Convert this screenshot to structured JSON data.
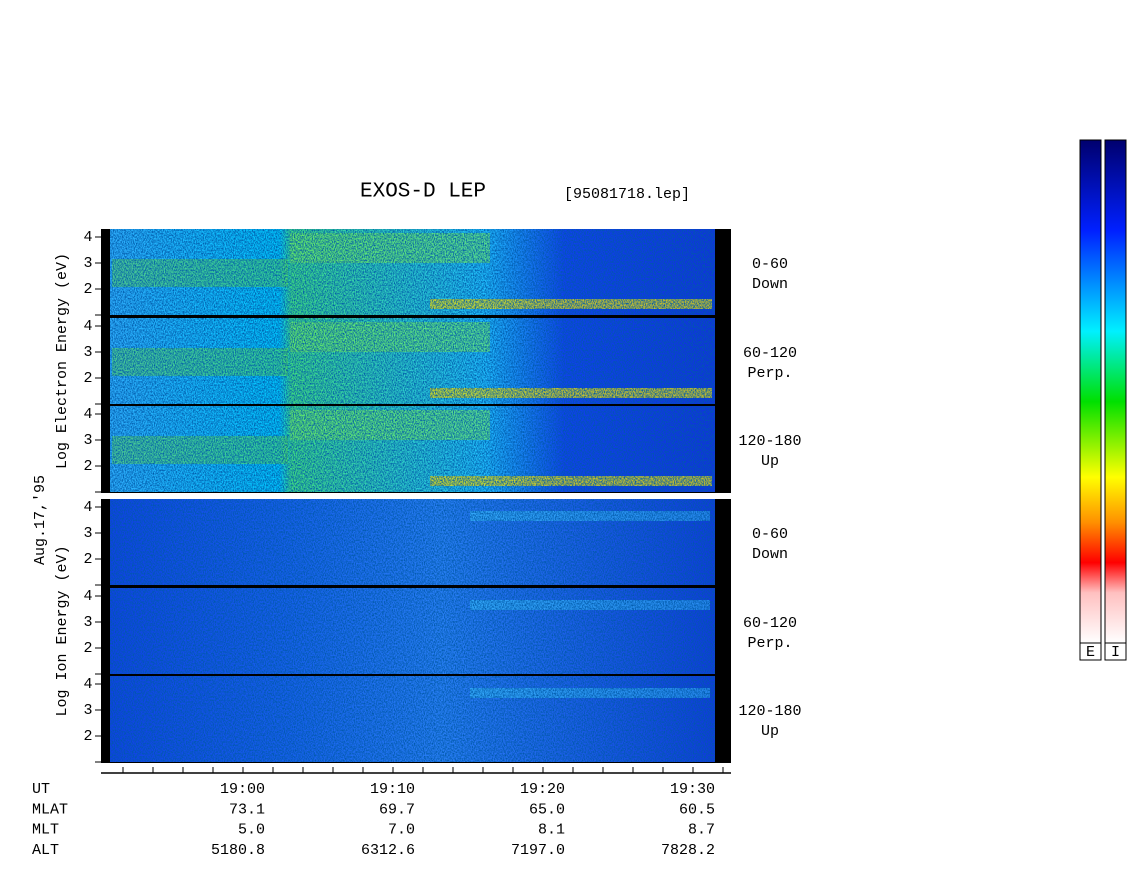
{
  "header": {
    "title": "EXOS-D LEP",
    "file": "[95081718.lep]",
    "date": "Aug.17,'95"
  },
  "blocks": [
    {
      "ylabel": "Log  Electron  Energy (eV)",
      "panels": [
        {
          "angle": "0-60",
          "direction": "Down",
          "ticks": [
            4,
            3,
            2
          ]
        },
        {
          "angle": "60-120",
          "direction": "Perp.",
          "ticks": [
            4,
            3,
            2
          ]
        },
        {
          "angle": "120-180",
          "direction": "Up",
          "ticks": [
            4,
            3,
            2
          ]
        }
      ]
    },
    {
      "ylabel": "Log  Ion  Energy (eV)",
      "panels": [
        {
          "angle": "0-60",
          "direction": "Down",
          "ticks": [
            4,
            3,
            2
          ]
        },
        {
          "angle": "60-120",
          "direction": "Perp.",
          "ticks": [
            4,
            3,
            2
          ]
        },
        {
          "angle": "120-180",
          "direction": "Up",
          "ticks": [
            4,
            3,
            2
          ]
        }
      ]
    }
  ],
  "time_axis": {
    "labels": [
      "19:00",
      "19:10",
      "19:20",
      "19:30"
    ]
  },
  "ephemeris": [
    {
      "name": "UT",
      "values": []
    },
    {
      "name": "MLAT",
      "values": [
        "73.1",
        "69.7",
        "65.0",
        "60.5"
      ]
    },
    {
      "name": "MLT",
      "values": [
        "5.0",
        "7.0",
        "8.1",
        "8.7"
      ]
    },
    {
      "name": "ALT",
      "values": [
        "5180.8",
        "6312.6",
        "7197.0",
        "7828.2"
      ]
    }
  ],
  "colorbars": [
    "E",
    "I"
  ]
}
